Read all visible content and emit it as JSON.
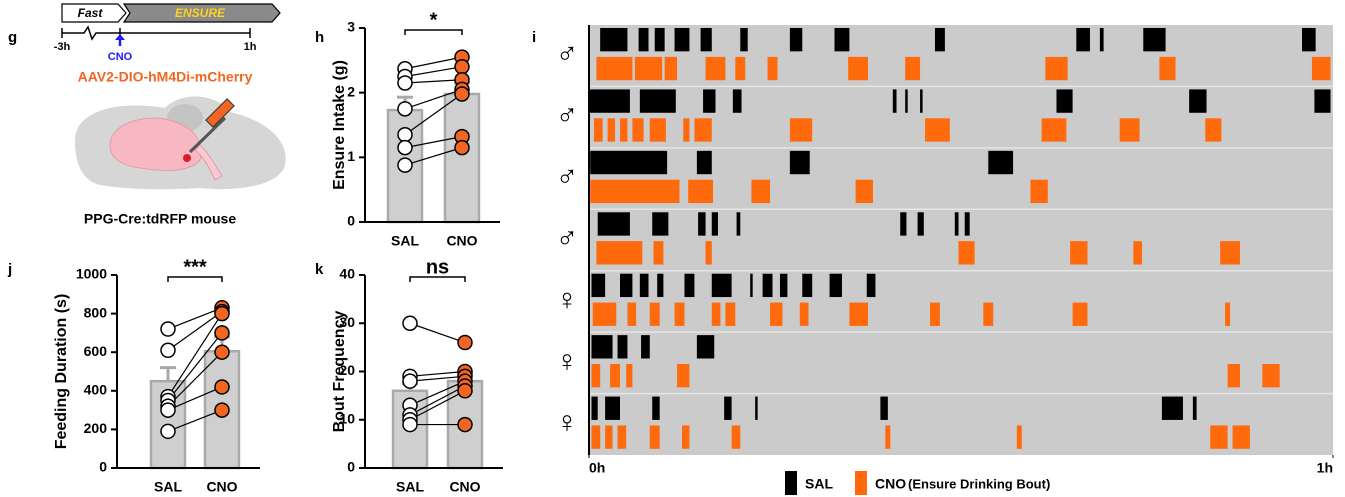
{
  "diagram": {
    "panel": "g",
    "phases": [
      "Fast",
      "ENSURE"
    ],
    "times": [
      "-3h",
      "1h"
    ],
    "drug": "CNO",
    "virus": "AAV2-DIO-hM4Di-mCherry",
    "mouse": "PPG-Cre:tdRFP mouse"
  },
  "chart_data": [
    {
      "type": "bar",
      "panel": "h",
      "ylabel": "Ensure Intake (g)",
      "categories": [
        "SAL",
        "CNO"
      ],
      "values": [
        1.73,
        1.98
      ],
      "errors": [
        0.2,
        0.17
      ],
      "color": "#cfcfcf",
      "error_color": "#a9a9a9",
      "points": [
        [
          2.37,
          2.25,
          2.15,
          1.75,
          1.35,
          1.15,
          0.88
        ],
        [
          2.55,
          2.4,
          2.2,
          2.05,
          1.98,
          1.32,
          1.15
        ]
      ],
      "point_colors": [
        "#ffffff",
        "#f26522"
      ],
      "significance": "*",
      "ylim": [
        0,
        3
      ],
      "yticks": [
        0,
        1,
        2,
        3
      ]
    },
    {
      "type": "bar",
      "panel": "j",
      "ylabel": "Feeding Duration (s)",
      "categories": [
        "SAL",
        "CNO"
      ],
      "values": [
        450,
        605
      ],
      "errors": [
        70,
        75
      ],
      "color": "#cfcfcf",
      "error_color": "#a9a9a9",
      "points": [
        [
          720,
          610,
          370,
          350,
          320,
          300,
          190
        ],
        [
          830,
          810,
          800,
          700,
          600,
          420,
          300
        ]
      ],
      "point_colors": [
        "#ffffff",
        "#f26522"
      ],
      "significance": "***",
      "ylim": [
        0,
        1000
      ],
      "yticks": [
        0,
        200,
        400,
        600,
        800,
        1000
      ]
    },
    {
      "type": "bar",
      "panel": "k",
      "ylabel": "Bout Frequency",
      "categories": [
        "SAL",
        "CNO"
      ],
      "values": [
        16,
        18
      ],
      "errors": [
        1.5,
        1.5
      ],
      "color": "#cfcfcf",
      "error_color": "#a9a9a9",
      "points": [
        [
          30,
          19,
          18,
          13,
          11,
          10,
          9
        ],
        [
          26,
          20,
          19,
          18,
          17,
          16,
          9
        ]
      ],
      "point_colors": [
        "#ffffff",
        "#f26522"
      ],
      "significance": "ns",
      "ylim": [
        0,
        40
      ],
      "yticks": [
        0,
        10,
        20,
        30,
        40
      ]
    },
    {
      "type": "raster",
      "panel": "i",
      "series": [
        {
          "name": "SAL",
          "color": "#000000"
        },
        {
          "name": "CNO",
          "color": "#ff6a0d"
        }
      ],
      "legend_note": "(Ensure Drinking Bout)",
      "xlim": [
        0,
        60
      ],
      "xticks": [
        {
          "value": 0,
          "label": "0h"
        },
        {
          "value": 60,
          "label": "1h"
        }
      ],
      "rows": [
        {
          "label": "♂",
          "bouts": [
            [
              [
                0.9,
                3.1
              ],
              [
                4.0,
                4.8
              ],
              [
                5.3,
                6.1
              ],
              [
                6.9,
                8.1
              ],
              [
                9.0,
                9.9
              ],
              [
                12.2,
                12.8
              ],
              [
                16.2,
                17.2
              ],
              [
                19.8,
                21.0
              ],
              [
                27.9,
                28.7
              ],
              [
                39.3,
                40.4
              ],
              [
                41.2,
                41.5
              ],
              [
                44.7,
                46.5
              ],
              [
                57.5,
                58.6
              ]
            ],
            [
              [
                0.6,
                3.5
              ],
              [
                3.7,
                5.9
              ],
              [
                6.1,
                7.1
              ],
              [
                9.4,
                11.0
              ],
              [
                11.8,
                12.6
              ],
              [
                14.4,
                15.2
              ],
              [
                20.9,
                22.5
              ],
              [
                25.5,
                26.7
              ],
              [
                36.8,
                38.6
              ],
              [
                46.0,
                47.3
              ],
              [
                58.3,
                59.8
              ]
            ]
          ]
        },
        {
          "label": "♂",
          "bouts": [
            [
              [
                0,
                3.3
              ],
              [
                4.1,
                7.0
              ],
              [
                9.2,
                10.2
              ],
              [
                11.6,
                12.3
              ],
              [
                24.5,
                24.8
              ],
              [
                25.5,
                25.7
              ],
              [
                26.7,
                26.9
              ],
              [
                37.7,
                39.0
              ],
              [
                48.4,
                49.8
              ],
              [
                58.5,
                59.8
              ]
            ],
            [
              [
                0.4,
                1.1
              ],
              [
                1.5,
                2.1
              ],
              [
                2.5,
                3.1
              ],
              [
                3.5,
                4.4
              ],
              [
                4.9,
                6.2
              ],
              [
                7.6,
                8.1
              ],
              [
                8.5,
                9.9
              ],
              [
                16.2,
                18.0
              ],
              [
                27.1,
                29.1
              ],
              [
                36.5,
                38.5
              ],
              [
                42.8,
                44.4
              ],
              [
                49.7,
                51.0
              ]
            ]
          ]
        },
        {
          "label": "♂",
          "bouts": [
            [
              [
                0.1,
                6.3
              ],
              [
                8.7,
                9.9
              ],
              [
                16.2,
                17.8
              ],
              [
                32.2,
                34.2
              ]
            ],
            [
              [
                0.1,
                7.3
              ],
              [
                8.0,
                10.0
              ],
              [
                13.1,
                14.6
              ],
              [
                21.5,
                22.9
              ],
              [
                35.6,
                37.0
              ]
            ]
          ]
        },
        {
          "label": "♂",
          "bouts": [
            [
              [
                0.7,
                3.3
              ],
              [
                5.1,
                6.4
              ],
              [
                8.8,
                9.4
              ],
              [
                9.9,
                10.4
              ],
              [
                11.9,
                12.2
              ],
              [
                25.1,
                25.6
              ],
              [
                26.5,
                27.0
              ],
              [
                29.5,
                29.8
              ],
              [
                30.3,
                30.7
              ]
            ],
            [
              [
                0.6,
                4.3
              ],
              [
                5.2,
                6.0
              ],
              [
                9.4,
                9.9
              ],
              [
                29.8,
                31.1
              ],
              [
                38.8,
                40.2
              ],
              [
                43.9,
                44.6
              ],
              [
                50.9,
                52.5
              ]
            ]
          ]
        },
        {
          "label": "♀",
          "bouts": [
            [
              [
                0.2,
                1.3
              ],
              [
                2.5,
                3.5
              ],
              [
                4.1,
                4.8
              ],
              [
                5.5,
                6.0
              ],
              [
                7.7,
                8.5
              ],
              [
                9.9,
                11.5
              ],
              [
                13.0,
                13.2
              ],
              [
                14.0,
                14.8
              ],
              [
                15.4,
                16.0
              ],
              [
                17.2,
                18.0
              ],
              [
                19.4,
                20.4
              ],
              [
                22.4,
                23.1
              ]
            ],
            [
              [
                0.3,
                2.2
              ],
              [
                3.1,
                3.8
              ],
              [
                4.9,
                5.7
              ],
              [
                6.9,
                7.7
              ],
              [
                9.9,
                10.6
              ],
              [
                11.0,
                11.8
              ],
              [
                14.6,
                15.6
              ],
              [
                17.0,
                17.7
              ],
              [
                21.0,
                22.5
              ],
              [
                27.5,
                28.3
              ],
              [
                31.8,
                32.6
              ],
              [
                39.0,
                40.2
              ],
              [
                51.3,
                51.7
              ]
            ]
          ]
        },
        {
          "label": "♀",
          "bouts": [
            [
              [
                0.2,
                1.9
              ],
              [
                2.3,
                3.1
              ],
              [
                4.2,
                4.9
              ],
              [
                8.7,
                10.1
              ]
            ],
            [
              [
                0.2,
                0.9
              ],
              [
                1.7,
                2.5
              ],
              [
                3.0,
                3.5
              ],
              [
                7.1,
                8.1
              ],
              [
                51.5,
                52.5
              ],
              [
                54.3,
                55.7
              ]
            ]
          ]
        },
        {
          "label": "♀",
          "bouts": [
            [
              [
                0.2,
                0.7
              ],
              [
                1.3,
                2.5
              ],
              [
                5.1,
                5.7
              ],
              [
                10.9,
                11.5
              ],
              [
                13.4,
                13.6
              ],
              [
                23.5,
                24.1
              ],
              [
                46.2,
                47.9
              ],
              [
                48.7,
                49.0
              ]
            ],
            [
              [
                0.2,
                0.9
              ],
              [
                1.3,
                1.9
              ],
              [
                2.3,
                3.0
              ],
              [
                4.9,
                5.7
              ],
              [
                7.5,
                8.1
              ],
              [
                11.5,
                12.2
              ],
              [
                23.9,
                24.3
              ],
              [
                34.5,
                34.9
              ],
              [
                50.1,
                51.5
              ],
              [
                51.9,
                53.3
              ]
            ]
          ]
        }
      ]
    }
  ]
}
